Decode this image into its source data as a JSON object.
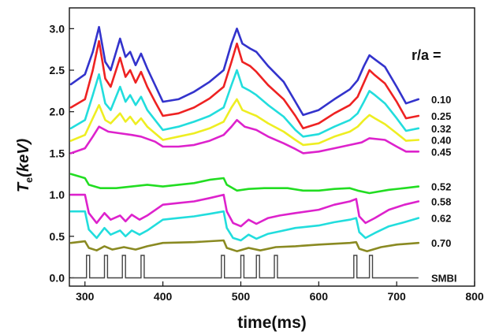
{
  "chart_data": {
    "type": "line",
    "xlabel": "time(ms)",
    "ylabel_main": "T",
    "ylabel_sub": "e",
    "ylabel_rest": "(keV)",
    "xlim": [
      280,
      800
    ],
    "ylim": [
      -0.1,
      3.25
    ],
    "x_ticks": [
      300,
      400,
      500,
      600,
      700,
      800
    ],
    "y_ticks": [
      0.0,
      0.5,
      1.0,
      1.5,
      2.0,
      2.5,
      3.0
    ],
    "y_tick_labels": [
      "0.0",
      "0.5",
      "1.0",
      "1.5",
      "2.0",
      "2.5",
      "3.0"
    ],
    "legend_title": "r/a =",
    "x_range_data": [
      282,
      728
    ],
    "series": [
      {
        "name": "0.10",
        "color": "#3333cc",
        "points": [
          [
            282,
            2.33
          ],
          [
            300,
            2.45
          ],
          [
            310,
            2.72
          ],
          [
            318,
            3.02
          ],
          [
            326,
            2.6
          ],
          [
            333,
            2.5
          ],
          [
            345,
            2.88
          ],
          [
            352,
            2.66
          ],
          [
            358,
            2.72
          ],
          [
            365,
            2.56
          ],
          [
            372,
            2.7
          ],
          [
            380,
            2.52
          ],
          [
            390,
            2.32
          ],
          [
            400,
            2.12
          ],
          [
            420,
            2.15
          ],
          [
            440,
            2.24
          ],
          [
            460,
            2.36
          ],
          [
            478,
            2.5
          ],
          [
            488,
            2.82
          ],
          [
            495,
            3.0
          ],
          [
            502,
            2.82
          ],
          [
            512,
            2.76
          ],
          [
            520,
            2.72
          ],
          [
            535,
            2.55
          ],
          [
            555,
            2.36
          ],
          [
            570,
            2.12
          ],
          [
            580,
            1.96
          ],
          [
            600,
            2.02
          ],
          [
            620,
            2.15
          ],
          [
            640,
            2.27
          ],
          [
            650,
            2.38
          ],
          [
            658,
            2.55
          ],
          [
            665,
            2.68
          ],
          [
            672,
            2.63
          ],
          [
            685,
            2.54
          ],
          [
            700,
            2.3
          ],
          [
            712,
            2.1
          ],
          [
            728,
            2.15
          ]
        ]
      },
      {
        "name": "0.25",
        "color": "#ee2222",
        "points": [
          [
            282,
            2.05
          ],
          [
            300,
            2.15
          ],
          [
            310,
            2.5
          ],
          [
            318,
            2.85
          ],
          [
            326,
            2.4
          ],
          [
            333,
            2.3
          ],
          [
            345,
            2.65
          ],
          [
            352,
            2.42
          ],
          [
            358,
            2.5
          ],
          [
            365,
            2.35
          ],
          [
            372,
            2.48
          ],
          [
            380,
            2.3
          ],
          [
            390,
            2.12
          ],
          [
            400,
            1.95
          ],
          [
            420,
            1.98
          ],
          [
            440,
            2.05
          ],
          [
            460,
            2.16
          ],
          [
            478,
            2.3
          ],
          [
            488,
            2.6
          ],
          [
            495,
            2.82
          ],
          [
            502,
            2.6
          ],
          [
            512,
            2.55
          ],
          [
            520,
            2.48
          ],
          [
            535,
            2.32
          ],
          [
            555,
            2.15
          ],
          [
            570,
            1.95
          ],
          [
            580,
            1.8
          ],
          [
            600,
            1.86
          ],
          [
            620,
            1.98
          ],
          [
            640,
            2.08
          ],
          [
            650,
            2.18
          ],
          [
            658,
            2.35
          ],
          [
            665,
            2.5
          ],
          [
            672,
            2.44
          ],
          [
            685,
            2.34
          ],
          [
            700,
            2.12
          ],
          [
            712,
            1.92
          ],
          [
            728,
            1.95
          ]
        ]
      },
      {
        "name": "0.32",
        "color": "#22dddd",
        "points": [
          [
            282,
            1.8
          ],
          [
            300,
            1.9
          ],
          [
            310,
            2.2
          ],
          [
            318,
            2.45
          ],
          [
            326,
            2.1
          ],
          [
            333,
            2.02
          ],
          [
            345,
            2.3
          ],
          [
            352,
            2.12
          ],
          [
            358,
            2.2
          ],
          [
            365,
            2.08
          ],
          [
            372,
            2.18
          ],
          [
            380,
            2.02
          ],
          [
            390,
            1.9
          ],
          [
            400,
            1.78
          ],
          [
            420,
            1.82
          ],
          [
            440,
            1.88
          ],
          [
            460,
            1.95
          ],
          [
            478,
            2.05
          ],
          [
            488,
            2.32
          ],
          [
            495,
            2.5
          ],
          [
            502,
            2.3
          ],
          [
            512,
            2.25
          ],
          [
            520,
            2.2
          ],
          [
            535,
            2.08
          ],
          [
            555,
            1.94
          ],
          [
            570,
            1.78
          ],
          [
            580,
            1.7
          ],
          [
            600,
            1.73
          ],
          [
            620,
            1.82
          ],
          [
            640,
            1.9
          ],
          [
            650,
            1.98
          ],
          [
            658,
            2.12
          ],
          [
            665,
            2.25
          ],
          [
            672,
            2.2
          ],
          [
            685,
            2.1
          ],
          [
            700,
            1.92
          ],
          [
            712,
            1.77
          ],
          [
            728,
            1.8
          ]
        ]
      },
      {
        "name": "0.40",
        "color": "#eeee22",
        "points": [
          [
            282,
            1.65
          ],
          [
            300,
            1.72
          ],
          [
            310,
            1.92
          ],
          [
            318,
            2.08
          ],
          [
            326,
            1.9
          ],
          [
            333,
            1.86
          ],
          [
            345,
            1.98
          ],
          [
            352,
            1.88
          ],
          [
            358,
            1.94
          ],
          [
            365,
            1.85
          ],
          [
            372,
            1.92
          ],
          [
            380,
            1.82
          ],
          [
            390,
            1.74
          ],
          [
            400,
            1.66
          ],
          [
            420,
            1.7
          ],
          [
            440,
            1.74
          ],
          [
            460,
            1.8
          ],
          [
            478,
            1.88
          ],
          [
            488,
            2.05
          ],
          [
            495,
            2.15
          ],
          [
            502,
            2.02
          ],
          [
            512,
            1.98
          ],
          [
            520,
            1.95
          ],
          [
            535,
            1.86
          ],
          [
            555,
            1.76
          ],
          [
            570,
            1.66
          ],
          [
            580,
            1.6
          ],
          [
            600,
            1.62
          ],
          [
            620,
            1.7
          ],
          [
            640,
            1.76
          ],
          [
            650,
            1.82
          ],
          [
            658,
            1.9
          ],
          [
            665,
            1.96
          ],
          [
            672,
            1.92
          ],
          [
            685,
            1.85
          ],
          [
            700,
            1.74
          ],
          [
            712,
            1.65
          ],
          [
            728,
            1.66
          ]
        ]
      },
      {
        "name": "0.45",
        "color": "#dd22cc",
        "points": [
          [
            282,
            1.5
          ],
          [
            300,
            1.56
          ],
          [
            310,
            1.7
          ],
          [
            318,
            1.82
          ],
          [
            330,
            1.76
          ],
          [
            345,
            1.74
          ],
          [
            360,
            1.72
          ],
          [
            372,
            1.7
          ],
          [
            390,
            1.64
          ],
          [
            400,
            1.58
          ],
          [
            420,
            1.58
          ],
          [
            440,
            1.6
          ],
          [
            460,
            1.65
          ],
          [
            478,
            1.72
          ],
          [
            488,
            1.82
          ],
          [
            495,
            1.9
          ],
          [
            505,
            1.82
          ],
          [
            520,
            1.78
          ],
          [
            535,
            1.7
          ],
          [
            555,
            1.62
          ],
          [
            570,
            1.55
          ],
          [
            580,
            1.5
          ],
          [
            600,
            1.52
          ],
          [
            620,
            1.56
          ],
          [
            640,
            1.6
          ],
          [
            655,
            1.63
          ],
          [
            665,
            1.68
          ],
          [
            685,
            1.66
          ],
          [
            700,
            1.58
          ],
          [
            712,
            1.52
          ],
          [
            728,
            1.52
          ]
        ]
      },
      {
        "name": "0.52",
        "color": "#22dd22",
        "points": [
          [
            282,
            1.25
          ],
          [
            300,
            1.2
          ],
          [
            305,
            1.12
          ],
          [
            320,
            1.08
          ],
          [
            340,
            1.08
          ],
          [
            360,
            1.1
          ],
          [
            380,
            1.12
          ],
          [
            400,
            1.1
          ],
          [
            420,
            1.12
          ],
          [
            440,
            1.14
          ],
          [
            460,
            1.18
          ],
          [
            478,
            1.2
          ],
          [
            482,
            1.12
          ],
          [
            495,
            1.05
          ],
          [
            510,
            1.07
          ],
          [
            530,
            1.08
          ],
          [
            560,
            1.08
          ],
          [
            580,
            1.05
          ],
          [
            600,
            1.05
          ],
          [
            620,
            1.07
          ],
          [
            640,
            1.08
          ],
          [
            650,
            1.05
          ],
          [
            665,
            1.02
          ],
          [
            690,
            1.06
          ],
          [
            710,
            1.08
          ],
          [
            728,
            1.1
          ]
        ]
      },
      {
        "name": "0.58",
        "color": "#dd22cc",
        "points": [
          [
            282,
            1.0
          ],
          [
            300,
            1.0
          ],
          [
            305,
            0.78
          ],
          [
            315,
            0.66
          ],
          [
            325,
            0.78
          ],
          [
            333,
            0.7
          ],
          [
            345,
            0.75
          ],
          [
            352,
            0.68
          ],
          [
            360,
            0.76
          ],
          [
            370,
            0.7
          ],
          [
            380,
            0.75
          ],
          [
            400,
            0.88
          ],
          [
            420,
            0.9
          ],
          [
            440,
            0.92
          ],
          [
            460,
            0.96
          ],
          [
            478,
            1.0
          ],
          [
            482,
            0.8
          ],
          [
            490,
            0.66
          ],
          [
            500,
            0.62
          ],
          [
            510,
            0.7
          ],
          [
            520,
            0.65
          ],
          [
            535,
            0.72
          ],
          [
            550,
            0.75
          ],
          [
            570,
            0.78
          ],
          [
            600,
            0.82
          ],
          [
            620,
            0.88
          ],
          [
            640,
            0.92
          ],
          [
            648,
            0.95
          ],
          [
            652,
            0.74
          ],
          [
            660,
            0.66
          ],
          [
            672,
            0.72
          ],
          [
            690,
            0.82
          ],
          [
            710,
            0.88
          ],
          [
            728,
            0.92
          ]
        ]
      },
      {
        "name": "0.62",
        "color": "#22dddd",
        "points": [
          [
            282,
            0.8
          ],
          [
            300,
            0.8
          ],
          [
            305,
            0.58
          ],
          [
            315,
            0.48
          ],
          [
            325,
            0.6
          ],
          [
            333,
            0.52
          ],
          [
            345,
            0.57
          ],
          [
            352,
            0.5
          ],
          [
            360,
            0.57
          ],
          [
            370,
            0.52
          ],
          [
            380,
            0.57
          ],
          [
            400,
            0.7
          ],
          [
            420,
            0.72
          ],
          [
            440,
            0.74
          ],
          [
            460,
            0.77
          ],
          [
            478,
            0.8
          ],
          [
            482,
            0.6
          ],
          [
            490,
            0.48
          ],
          [
            500,
            0.45
          ],
          [
            510,
            0.52
          ],
          [
            520,
            0.47
          ],
          [
            535,
            0.53
          ],
          [
            550,
            0.56
          ],
          [
            570,
            0.6
          ],
          [
            600,
            0.63
          ],
          [
            620,
            0.67
          ],
          [
            640,
            0.7
          ],
          [
            648,
            0.72
          ],
          [
            652,
            0.55
          ],
          [
            660,
            0.48
          ],
          [
            672,
            0.54
          ],
          [
            690,
            0.62
          ],
          [
            710,
            0.67
          ],
          [
            728,
            0.72
          ]
        ]
      },
      {
        "name": "0.70",
        "color": "#8a8a22",
        "points": [
          [
            282,
            0.42
          ],
          [
            300,
            0.44
          ],
          [
            305,
            0.36
          ],
          [
            315,
            0.33
          ],
          [
            325,
            0.38
          ],
          [
            335,
            0.34
          ],
          [
            350,
            0.37
          ],
          [
            365,
            0.34
          ],
          [
            380,
            0.38
          ],
          [
            400,
            0.42
          ],
          [
            440,
            0.43
          ],
          [
            478,
            0.45
          ],
          [
            482,
            0.36
          ],
          [
            495,
            0.32
          ],
          [
            510,
            0.36
          ],
          [
            525,
            0.33
          ],
          [
            545,
            0.37
          ],
          [
            570,
            0.38
          ],
          [
            600,
            0.4
          ],
          [
            640,
            0.42
          ],
          [
            648,
            0.43
          ],
          [
            652,
            0.35
          ],
          [
            662,
            0.32
          ],
          [
            680,
            0.37
          ],
          [
            700,
            0.4
          ],
          [
            728,
            0.42
          ]
        ]
      },
      {
        "name": "SMBI",
        "color": "#444444",
        "baseline": 0.0,
        "pulse_height": 0.27,
        "pulse_width": 4,
        "pulse_times": [
          302,
          325,
          348,
          372,
          475,
          500,
          520,
          543,
          645,
          665
        ],
        "x_end": 728
      }
    ]
  }
}
